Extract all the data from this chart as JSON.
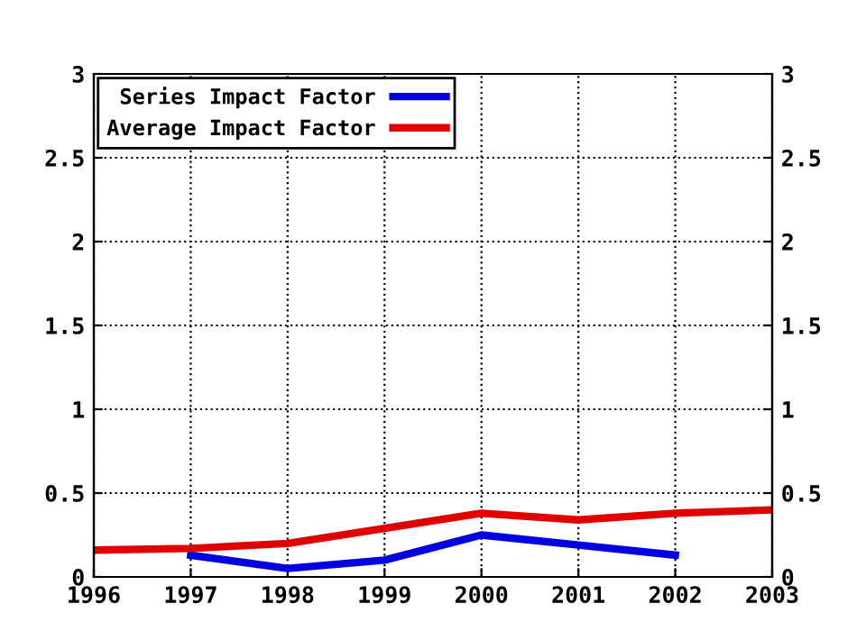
{
  "chart_data": {
    "type": "line",
    "x": [
      1996,
      1997,
      1998,
      1999,
      2000,
      2001,
      2002,
      2003
    ],
    "series": [
      {
        "name": "Series Impact Factor",
        "color": "#0000e0",
        "values": [
          null,
          0.13,
          0.05,
          0.1,
          0.25,
          0.19,
          0.13,
          null
        ]
      },
      {
        "name": "Average Impact Factor",
        "color": "#e00000",
        "values": [
          0.16,
          0.17,
          0.2,
          0.29,
          0.38,
          0.34,
          0.38,
          0.4
        ]
      }
    ],
    "xlim": [
      1996,
      2003
    ],
    "xticks": [
      1996,
      1997,
      1998,
      1999,
      2000,
      2001,
      2002,
      2003
    ],
    "ylim": [
      0,
      3
    ],
    "yticks": [
      0,
      0.5,
      1,
      1.5,
      2,
      2.5,
      3
    ],
    "y2lim": [
      0,
      3
    ],
    "y2ticks": [
      0,
      0.5,
      1,
      1.5,
      2,
      2.5,
      3
    ],
    "grid": true,
    "legend": "top left",
    "line_style": "solid",
    "marker": "none"
  }
}
